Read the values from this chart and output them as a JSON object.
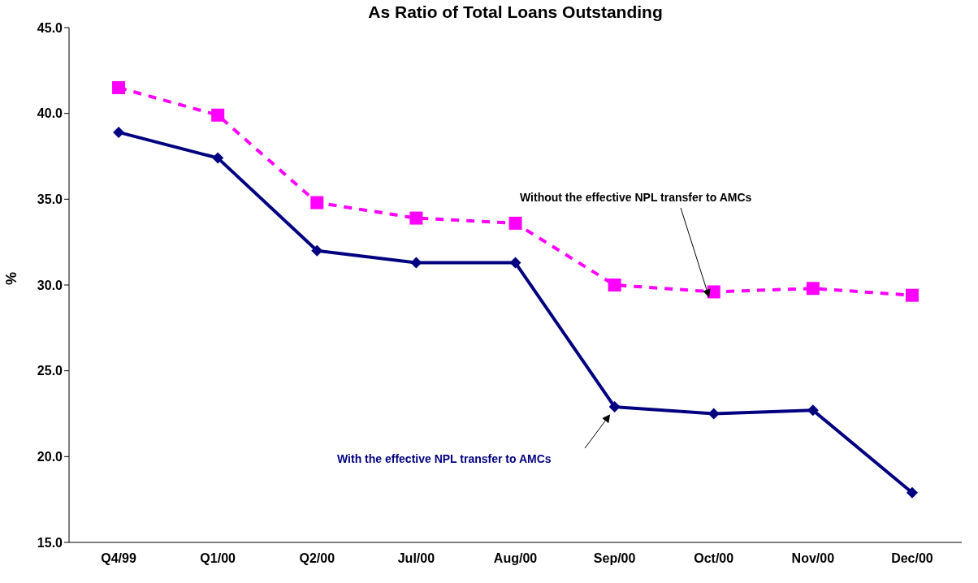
{
  "chart_data": {
    "type": "line",
    "title": "As Ratio of Total Loans Outstanding",
    "ylabel": "%",
    "categories": [
      "Q4/99",
      "Q1/00",
      "Q2/00",
      "Jul/00",
      "Aug/00",
      "Sep/00",
      "Oct/00",
      "Nov/00",
      "Dec/00"
    ],
    "series": [
      {
        "name": "Without the effective NPL transfer to AMCs",
        "color": "#ff00ff",
        "values": [
          41.5,
          39.9,
          34.8,
          33.9,
          33.6,
          30.0,
          29.6,
          29.8,
          29.4
        ],
        "marker": "square",
        "line_style": "dashed"
      },
      {
        "name": "With the effective NPL transfer to AMCs",
        "color": "#000080",
        "values": [
          38.9,
          37.4,
          32.0,
          31.3,
          31.3,
          22.9,
          22.5,
          22.7,
          17.9
        ],
        "marker": "diamond",
        "line_style": "solid"
      }
    ],
    "ylim": [
      15,
      45
    ],
    "yticks": [
      {
        "value": 15,
        "label": "15.0"
      },
      {
        "value": 20,
        "label": "20.0"
      },
      {
        "value": 25,
        "label": "25.0"
      },
      {
        "value": 30,
        "label": "30.0"
      },
      {
        "value": 35,
        "label": "35.0"
      },
      {
        "value": 40,
        "label": "40.0"
      },
      {
        "value": 45,
        "label": "45.0"
      }
    ],
    "grid": false,
    "legend": false
  }
}
